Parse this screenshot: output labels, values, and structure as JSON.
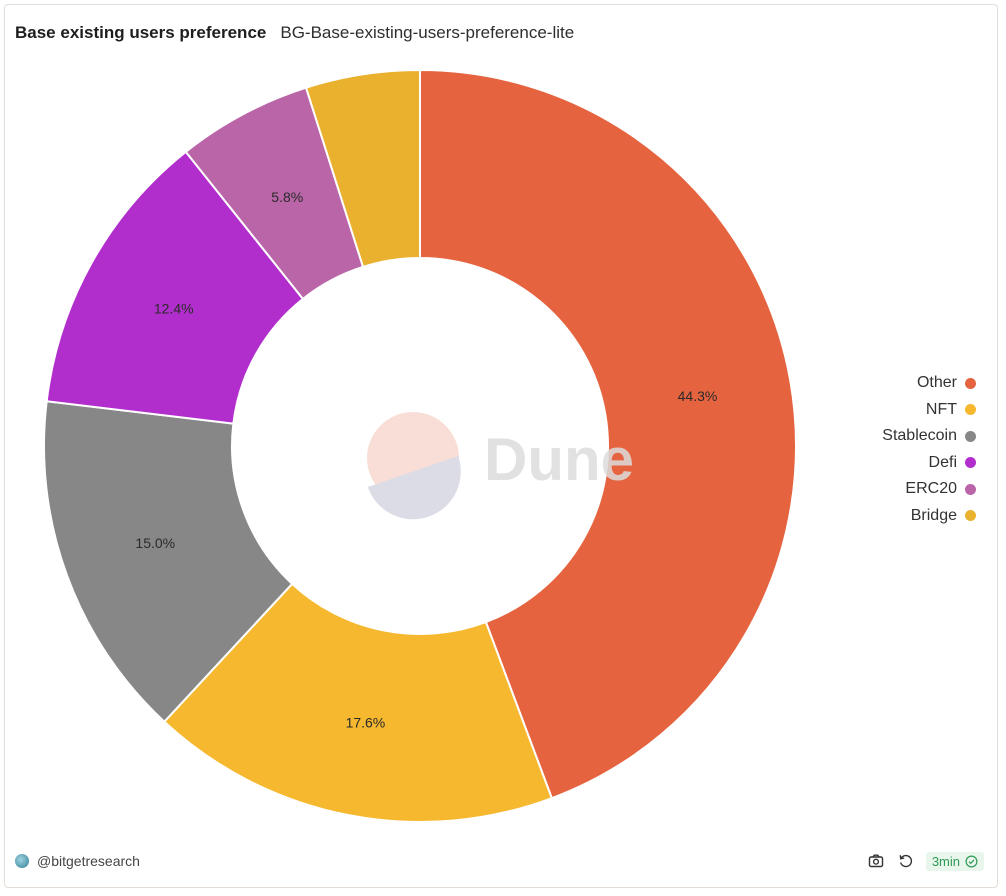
{
  "header": {
    "title": "Base existing users preference",
    "subtitle": "BG-Base-existing-users-preference-lite"
  },
  "watermark": {
    "text": "Dune"
  },
  "chart_data": {
    "type": "pie",
    "donut": true,
    "legend_position": "right",
    "slices": [
      {
        "name": "Other",
        "value": 44.3,
        "label": "44.3%",
        "color": "#e5633e"
      },
      {
        "name": "NFT",
        "value": 17.6,
        "label": "17.6%",
        "color": "#f6b82f"
      },
      {
        "name": "Stablecoin",
        "value": 15.0,
        "label": "15.0%",
        "color": "#878787"
      },
      {
        "name": "Defi",
        "value": 12.4,
        "label": "12.4%",
        "color": "#b22ecc"
      },
      {
        "name": "ERC20",
        "value": 5.8,
        "label": "5.8%",
        "color": "#b965a8"
      },
      {
        "name": "Bridge",
        "value": 4.9,
        "label": "",
        "color": "#e9b12e"
      }
    ]
  },
  "footer": {
    "author": "@bitgetresearch",
    "refresh_badge": "3min",
    "icons": [
      "camera-icon",
      "refresh-icon",
      "check-circle-icon"
    ]
  }
}
